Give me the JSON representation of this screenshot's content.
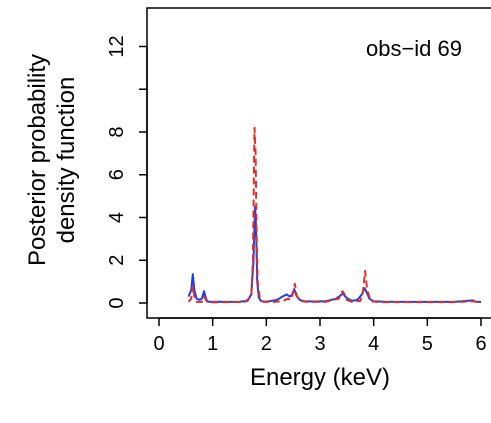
{
  "chart_data": {
    "type": "line",
    "title": "",
    "annotation": "obs−id 69",
    "xlabel": "Energy (keV)",
    "ylabel_line1": "Posterior probability",
    "ylabel_line2": "density function",
    "xlim": [
      0,
      6
    ],
    "ylim": [
      0,
      13.8
    ],
    "x_ticks": [
      0,
      1,
      2,
      3,
      4,
      5,
      6
    ],
    "x_tick_labels": [
      "0",
      "1",
      "2",
      "3",
      "4",
      "5",
      "6"
    ],
    "y_ticks": [
      0,
      2,
      4,
      6,
      8,
      12
    ],
    "y_tick_labels": [
      "0",
      "2",
      "4",
      "6",
      "8",
      "12"
    ],
    "grid": false,
    "legend": "none",
    "series": [
      {
        "style": "solid",
        "color": "#1f3fe0",
        "x": [
          0.55,
          0.6,
          0.63,
          0.66,
          0.7,
          0.75,
          0.8,
          0.84,
          0.87,
          0.9,
          0.95,
          1.1,
          1.3,
          1.5,
          1.65,
          1.72,
          1.76,
          1.79,
          1.81,
          1.83,
          1.86,
          1.9,
          1.95,
          2.05,
          2.2,
          2.3,
          2.38,
          2.44,
          2.48,
          2.52,
          2.56,
          2.62,
          2.7,
          2.9,
          3.1,
          3.3,
          3.38,
          3.43,
          3.47,
          3.52,
          3.6,
          3.7,
          3.78,
          3.83,
          3.87,
          3.92,
          4.0,
          4.2,
          4.5,
          5.0,
          5.5,
          5.85,
          5.9,
          6.0
        ],
        "y": [
          0.3,
          0.6,
          1.35,
          0.6,
          0.2,
          0.15,
          0.2,
          0.55,
          0.25,
          0.08,
          0.05,
          0.06,
          0.05,
          0.06,
          0.1,
          0.4,
          2.0,
          4.5,
          3.5,
          1.0,
          0.25,
          0.1,
          0.06,
          0.08,
          0.15,
          0.3,
          0.4,
          0.3,
          0.4,
          0.65,
          0.35,
          0.15,
          0.08,
          0.07,
          0.08,
          0.2,
          0.35,
          0.45,
          0.3,
          0.2,
          0.1,
          0.15,
          0.4,
          0.7,
          0.5,
          0.2,
          0.08,
          0.06,
          0.05,
          0.05,
          0.05,
          0.12,
          0.06,
          0.05
        ]
      },
      {
        "style": "dashed",
        "color": "#e0302a",
        "x": [
          0.55,
          0.6,
          0.63,
          0.66,
          0.7,
          0.8,
          0.84,
          0.9,
          1.0,
          1.3,
          1.6,
          1.72,
          1.75,
          1.78,
          1.8,
          1.82,
          1.84,
          1.88,
          1.95,
          2.1,
          2.3,
          2.4,
          2.46,
          2.5,
          2.53,
          2.57,
          2.65,
          2.8,
          3.1,
          3.35,
          3.42,
          3.46,
          3.5,
          3.6,
          3.75,
          3.8,
          3.84,
          3.88,
          3.95,
          4.1,
          4.4,
          5.0,
          5.5,
          5.85,
          6.0
        ],
        "y": [
          0.05,
          0.2,
          0.8,
          0.3,
          0.05,
          0.05,
          0.3,
          0.05,
          0.03,
          0.04,
          0.05,
          0.3,
          2.0,
          8.2,
          7.0,
          3.0,
          1.0,
          0.2,
          0.05,
          0.05,
          0.08,
          0.2,
          0.15,
          0.5,
          0.9,
          0.3,
          0.08,
          0.05,
          0.05,
          0.2,
          0.55,
          0.4,
          0.15,
          0.05,
          0.1,
          0.5,
          1.5,
          0.6,
          0.08,
          0.04,
          0.04,
          0.04,
          0.04,
          0.08,
          0.04
        ]
      }
    ]
  }
}
